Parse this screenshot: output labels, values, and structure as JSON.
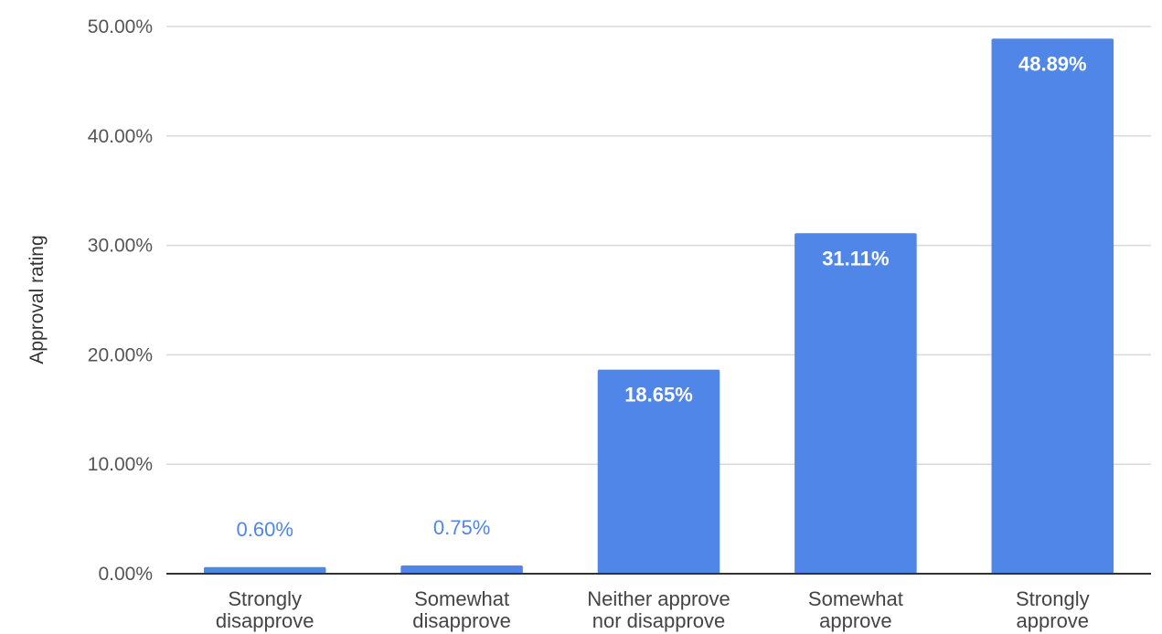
{
  "chart_data": {
    "type": "bar",
    "categories": [
      [
        "Strongly",
        "disapprove"
      ],
      [
        "Somewhat",
        "disapprove"
      ],
      [
        "Neither approve",
        "nor disapprove"
      ],
      [
        "Somewhat",
        "approve"
      ],
      [
        "Strongly",
        "approve"
      ]
    ],
    "values": [
      0.6,
      0.75,
      18.65,
      31.11,
      48.89
    ],
    "data_labels": [
      "0.60%",
      "0.75%",
      "18.65%",
      "31.11%",
      "48.89%"
    ],
    "ylabel": "Approval rating",
    "ylim": [
      0,
      50
    ],
    "yticks": [
      0,
      10,
      20,
      30,
      40,
      50
    ],
    "ytick_labels": [
      "0.00%",
      "10.00%",
      "20.00%",
      "30.00%",
      "40.00%",
      "50.00%"
    ],
    "grid": true,
    "bar_color": "#4f86e8",
    "label_inside_color": "#ffffff",
    "label_outside_color": "#4f86e8"
  }
}
